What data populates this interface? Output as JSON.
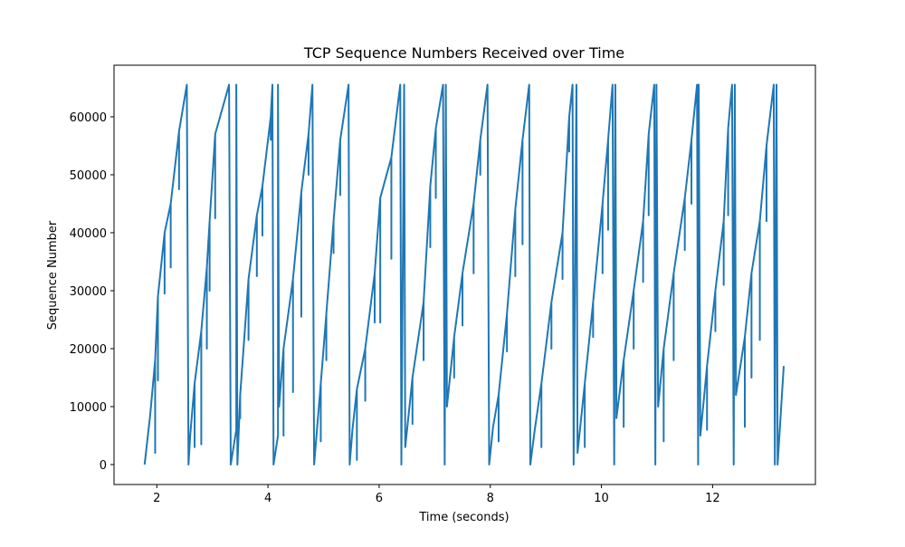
{
  "chart_data": {
    "type": "line",
    "title": "TCP Sequence Numbers Received over Time",
    "x_label": "Time (seconds)",
    "y_label": "Sequence Number",
    "xlim": [
      1.23,
      13.85
    ],
    "ylim": [
      -3440,
      68900
    ],
    "xticks": [
      2,
      4,
      6,
      8,
      10,
      12
    ],
    "yticks": [
      0,
      10000,
      20000,
      30000,
      40000,
      50000,
      60000
    ],
    "x": [
      1.78,
      1.88,
      1.97,
      1.97,
      1.97,
      2.02,
      2.02,
      2.02,
      2.14,
      2.14,
      2.14,
      2.25,
      2.25,
      2.25,
      2.4,
      2.4,
      2.4,
      2.54,
      2.57,
      2.6,
      2.68,
      2.68,
      2.68,
      2.8,
      2.8,
      2.8,
      2.9,
      2.9,
      2.9,
      2.95,
      2.95,
      2.95,
      3.05,
      3.05,
      3.05,
      3.3,
      3.33,
      3.43,
      3.43,
      3.45,
      3.5,
      3.5,
      3.5,
      3.65,
      3.65,
      3.65,
      3.8,
      3.8,
      3.8,
      3.9,
      3.9,
      3.9,
      4.05,
      4.05,
      4.05,
      4.08,
      4.1,
      4.18,
      4.18,
      4.2,
      4.28,
      4.28,
      4.28,
      4.45,
      4.45,
      4.45,
      4.6,
      4.6,
      4.6,
      4.73,
      4.73,
      4.73,
      4.8,
      4.83,
      4.95,
      4.95,
      4.95,
      5.05,
      5.05,
      5.05,
      5.18,
      5.18,
      5.18,
      5.3,
      5.3,
      5.3,
      5.45,
      5.47,
      5.52,
      5.6,
      5.6,
      5.6,
      5.75,
      5.75,
      5.75,
      5.92,
      5.92,
      5.92,
      6.02,
      6.02,
      6.02,
      6.22,
      6.22,
      6.22,
      6.38,
      6.4,
      6.45,
      6.47,
      6.6,
      6.6,
      6.6,
      6.8,
      6.8,
      6.8,
      6.92,
      6.92,
      6.92,
      7.02,
      7.02,
      7.02,
      7.15,
      7.18,
      7.2,
      7.22,
      7.35,
      7.35,
      7.35,
      7.5,
      7.5,
      7.5,
      7.7,
      7.7,
      7.7,
      7.82,
      7.82,
      7.82,
      7.95,
      7.98,
      8.05,
      8.15,
      8.15,
      8.15,
      8.3,
      8.3,
      8.3,
      8.45,
      8.45,
      8.45,
      8.58,
      8.58,
      8.58,
      8.7,
      8.72,
      8.8,
      8.92,
      8.92,
      8.92,
      9.1,
      9.1,
      9.1,
      9.3,
      9.3,
      9.3,
      9.42,
      9.42,
      9.42,
      9.48,
      9.5,
      9.55,
      9.57,
      9.7,
      9.7,
      9.7,
      9.85,
      9.85,
      9.85,
      10.02,
      10.02,
      10.02,
      10.12,
      10.12,
      10.12,
      10.2,
      10.23,
      10.25,
      10.27,
      10.4,
      10.4,
      10.4,
      10.58,
      10.58,
      10.58,
      10.75,
      10.75,
      10.75,
      10.85,
      10.85,
      10.85,
      10.95,
      10.97,
      10.99,
      11.02,
      11.12,
      11.12,
      11.12,
      11.3,
      11.3,
      11.3,
      11.5,
      11.5,
      11.5,
      11.62,
      11.62,
      11.62,
      11.72,
      11.74,
      11.75,
      11.78,
      11.9,
      11.9,
      11.9,
      12.05,
      12.05,
      12.05,
      12.2,
      12.2,
      12.2,
      12.28,
      12.28,
      12.28,
      12.35,
      12.38,
      12.4,
      12.42,
      12.58,
      12.58,
      12.58,
      12.7,
      12.7,
      12.7,
      12.85,
      12.85,
      12.85,
      12.97,
      12.97,
      12.97,
      13.1,
      13.12,
      13.15,
      13.17,
      13.28
    ],
    "series": [
      {
        "color": "#1f77b4",
        "values": [
          0,
          8500,
          18000,
          2000,
          18000,
          29000,
          14500,
          29000,
          40000,
          29500,
          40000,
          45000,
          34000,
          45000,
          57500,
          47500,
          57500,
          65535,
          0,
          5000,
          14000,
          3000,
          14000,
          23000,
          3500,
          23000,
          34000,
          20000,
          34000,
          42000,
          30000,
          42000,
          57000,
          42500,
          57000,
          65535,
          0,
          6000,
          65535,
          0,
          12000,
          8000,
          12000,
          32000,
          21500,
          32000,
          43000,
          32500,
          43000,
          48000,
          39500,
          48000,
          60000,
          56000,
          60000,
          65535,
          0,
          5000,
          65535,
          10000,
          20000,
          5000,
          20000,
          32000,
          12500,
          32000,
          47000,
          25500,
          47000,
          57000,
          50000,
          57000,
          65535,
          0,
          14000,
          4000,
          14000,
          26000,
          18000,
          26000,
          42000,
          36500,
          42000,
          56000,
          46500,
          56000,
          65535,
          0,
          6000,
          13000,
          800,
          13000,
          20000,
          11000,
          20000,
          33000,
          24500,
          33000,
          46000,
          24500,
          46000,
          53000,
          35500,
          53000,
          65535,
          0,
          65535,
          3000,
          15000,
          7000,
          15000,
          28000,
          18000,
          28000,
          48000,
          37500,
          48000,
          58000,
          46000,
          58000,
          65535,
          0,
          65535,
          10000,
          22000,
          15000,
          22000,
          33000,
          24000,
          33000,
          45000,
          33000,
          45000,
          56000,
          50000,
          56000,
          65535,
          0,
          6500,
          12000,
          4000,
          12000,
          26000,
          19500,
          26000,
          44000,
          32500,
          44000,
          56000,
          38000,
          56000,
          65535,
          0,
          6000,
          14000,
          3000,
          14000,
          28000,
          20000,
          28000,
          40000,
          32000,
          40000,
          60000,
          54000,
          60000,
          65535,
          0,
          65535,
          2000,
          14000,
          3000,
          14000,
          28000,
          22000,
          28000,
          45000,
          33000,
          45000,
          56000,
          40500,
          56000,
          65535,
          0,
          65535,
          8000,
          18000,
          6500,
          18000,
          30000,
          20000,
          30000,
          42000,
          31500,
          42000,
          57000,
          43000,
          57000,
          65535,
          0,
          65535,
          10000,
          20000,
          4000,
          20000,
          33000,
          18000,
          33000,
          46000,
          37000,
          46000,
          56000,
          45000,
          56000,
          65535,
          0,
          65535,
          5000,
          17000,
          6000,
          17000,
          30000,
          23000,
          30000,
          42000,
          31000,
          42000,
          58000,
          43000,
          58000,
          65535,
          0,
          65535,
          12000,
          22000,
          6500,
          22000,
          33000,
          15000,
          33000,
          42000,
          21500,
          42000,
          55000,
          42000,
          55000,
          65535,
          0,
          65535,
          0,
          17000
        ]
      }
    ]
  }
}
